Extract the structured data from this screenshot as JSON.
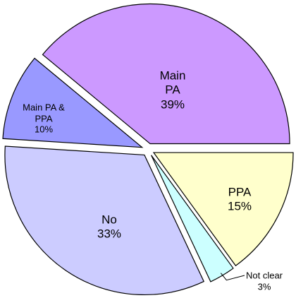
{
  "chart_data": {
    "type": "pie",
    "categories": [
      "PPA",
      "Not clear",
      "No",
      "Main PA & PPA",
      "Main PA"
    ],
    "values": [
      15,
      3,
      33,
      10,
      39
    ],
    "value_labels": [
      "15%",
      "3%",
      "33%",
      "10%",
      "39%"
    ],
    "colors": [
      "#ffffcc",
      "#ccffff",
      "#ccccff",
      "#9999ff",
      "#cc99ff"
    ]
  }
}
